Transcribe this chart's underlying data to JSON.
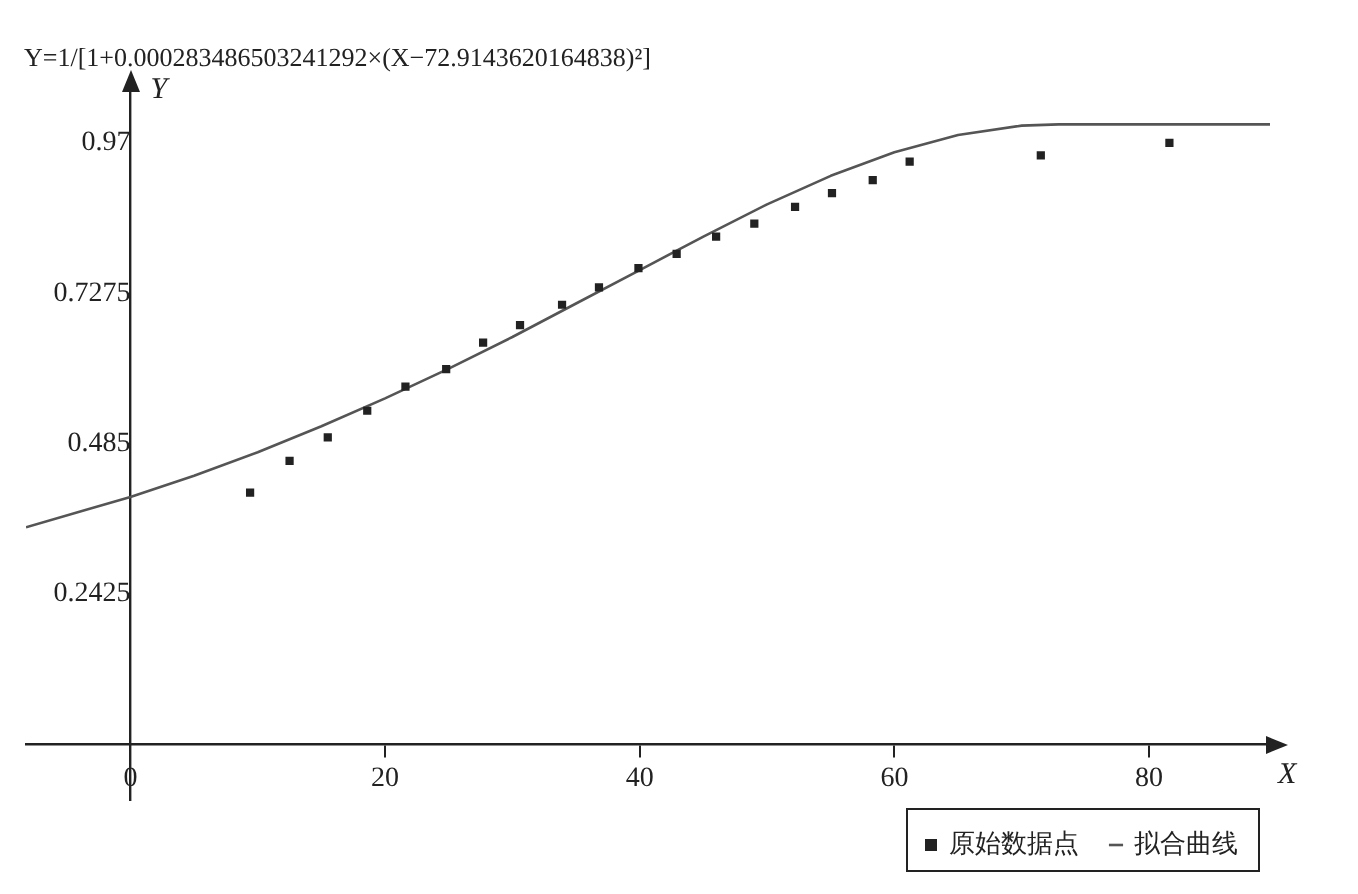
{
  "chart_data": {
    "type": "scatter",
    "title": "Y=1/[1+0.000283486503241292×(X−72.9143620164838)²]",
    "xlabel": "X",
    "ylabel": "Y",
    "xlim": [
      -8.2,
      89.5
    ],
    "ylim": [
      -0.09,
      1.06
    ],
    "xticks": [
      0,
      20,
      40,
      60,
      80
    ],
    "yticks": [
      0.2425,
      0.485,
      0.7275,
      0.97
    ],
    "grid": false,
    "legend": "bottom right",
    "series": [
      {
        "name": "原始数据点",
        "type": "scatter",
        "marker": "square",
        "color": "#222222",
        "x": [
          9.4,
          12.5,
          15.5,
          18.6,
          21.6,
          24.8,
          27.7,
          30.6,
          33.9,
          36.8,
          39.9,
          42.9,
          46.0,
          49.0,
          52.2,
          55.1,
          58.3,
          61.2,
          71.5,
          81.6
        ],
        "values": [
          0.406,
          0.457,
          0.495,
          0.538,
          0.577,
          0.605,
          0.648,
          0.676,
          0.709,
          0.737,
          0.768,
          0.791,
          0.819,
          0.84,
          0.867,
          0.889,
          0.91,
          0.94,
          0.95,
          0.97
        ]
      },
      {
        "name": "拟合曲线",
        "type": "line",
        "marker": "none",
        "color": "#555555",
        "x": [
          -8.2,
          0,
          5,
          10,
          15,
          20,
          25,
          30,
          35,
          40,
          45,
          50,
          55,
          60,
          65,
          70,
          72.9,
          89.5
        ],
        "values": [
          0.35,
          0.399,
          0.433,
          0.471,
          0.513,
          0.558,
          0.606,
          0.657,
          0.711,
          0.765,
          0.819,
          0.871,
          0.917,
          0.955,
          0.983,
          0.998,
          1,
          1
        ]
      }
    ]
  }
}
